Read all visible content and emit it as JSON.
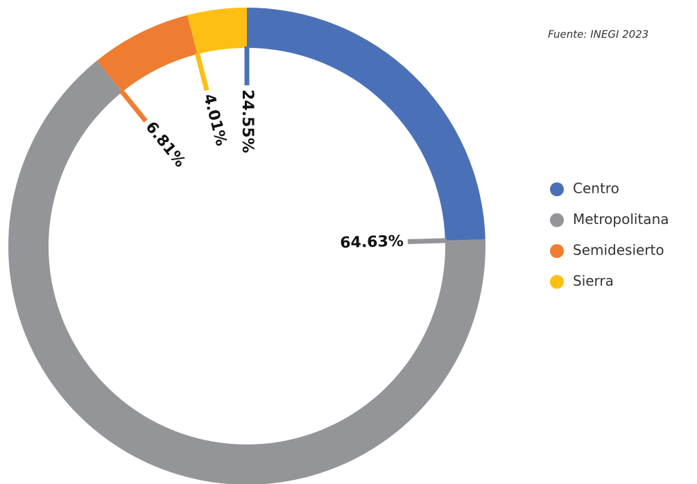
{
  "chart_data": {
    "type": "donut",
    "source": "Fuente: INEGI 2023",
    "categories": [
      "Centro",
      "Metropolitana",
      "Semidesierto",
      "Sierra"
    ],
    "values": [
      24.55,
      64.63,
      6.81,
      4.01
    ],
    "value_labels": [
      "24.55%",
      "64.63%",
      "6.81%",
      "4.01%"
    ],
    "colors": [
      "#4a70b8",
      "#939598",
      "#ee7d31",
      "#fdbf14"
    ],
    "legend": "right"
  }
}
